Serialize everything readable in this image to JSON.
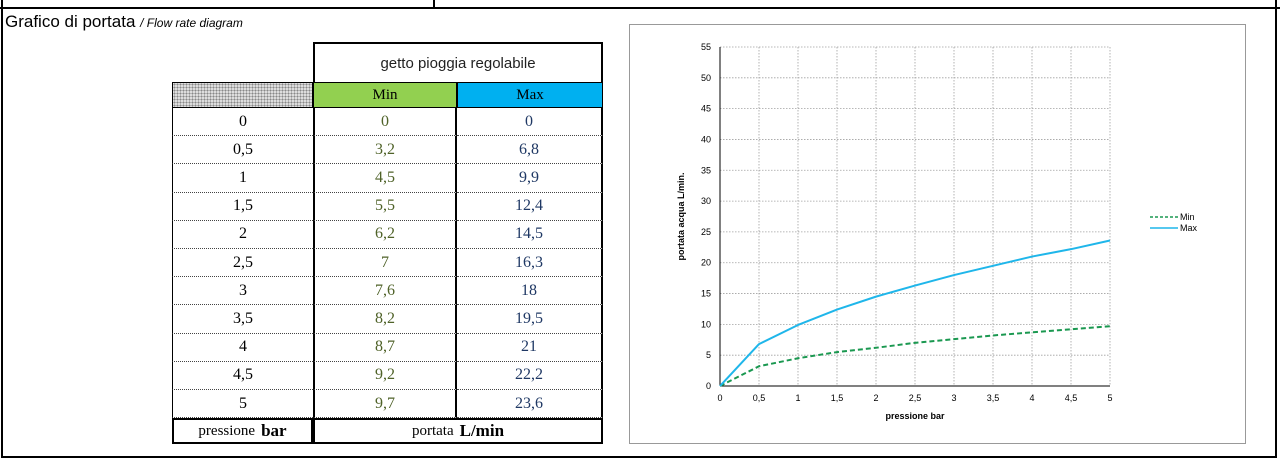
{
  "heading": {
    "title": "Grafico di portata",
    "subtitle": "/ Flow rate diagram"
  },
  "table": {
    "group_header": "getto pioggia regolabile",
    "col_min": "Min",
    "col_max": "Max",
    "rows": [
      {
        "p": "0",
        "min": "0",
        "max": "0"
      },
      {
        "p": "0,5",
        "min": "3,2",
        "max": "6,8"
      },
      {
        "p": "1",
        "min": "4,5",
        "max": "9,9"
      },
      {
        "p": "1,5",
        "min": "5,5",
        "max": "12,4"
      },
      {
        "p": "2",
        "min": "6,2",
        "max": "14,5"
      },
      {
        "p": "2,5",
        "min": "7",
        "max": "16,3"
      },
      {
        "p": "3",
        "min": "7,6",
        "max": "18"
      },
      {
        "p": "3,5",
        "min": "8,2",
        "max": "19,5"
      },
      {
        "p": "4",
        "min": "8,7",
        "max": "21"
      },
      {
        "p": "4,5",
        "min": "9,2",
        "max": "22,2"
      },
      {
        "p": "5",
        "min": "9,7",
        "max": "23,6"
      }
    ],
    "footer_pressure_label": "pressione",
    "footer_pressure_unit": "bar",
    "footer_flow_label": "portata",
    "footer_flow_unit": "L/min"
  },
  "chart_data": {
    "type": "line",
    "xlabel": "pressione bar",
    "ylabel": "portata acqua  L/min.",
    "xlim": [
      0,
      5
    ],
    "ylim": [
      0,
      55
    ],
    "x_ticks": [
      "0",
      "0,5",
      "1",
      "1,5",
      "2",
      "2,5",
      "3",
      "3,5",
      "4",
      "4,5",
      "5"
    ],
    "y_ticks": [
      "0",
      "5",
      "10",
      "15",
      "20",
      "25",
      "30",
      "35",
      "40",
      "45",
      "50",
      "55"
    ],
    "grid": true,
    "legend_position": "right",
    "x": [
      0,
      0.5,
      1,
      1.5,
      2,
      2.5,
      3,
      3.5,
      4,
      4.5,
      5
    ],
    "series": [
      {
        "name": "Min",
        "values": [
          0,
          3.2,
          4.5,
          5.5,
          6.2,
          7,
          7.6,
          8.2,
          8.7,
          9.2,
          9.7
        ],
        "color": "#1a9850",
        "style": "dashed"
      },
      {
        "name": "Max",
        "values": [
          0,
          6.8,
          9.9,
          12.4,
          14.5,
          16.3,
          18,
          19.5,
          21,
          22.2,
          23.6
        ],
        "color": "#1fb6ea",
        "style": "solid"
      }
    ]
  }
}
